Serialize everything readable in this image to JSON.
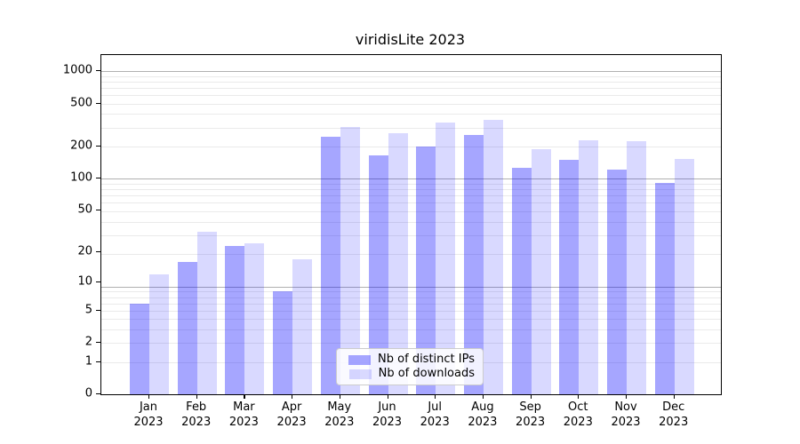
{
  "title": "viridisLite 2023",
  "colors": {
    "ips_bar": "rgba(0,0,255,0.35)",
    "downloads_bar": "rgba(0,0,255,0.15)",
    "major_grid": "#b0b0b0",
    "minor_grid": "#eaeaea",
    "axis": "#000000"
  },
  "legend": {
    "position": "lower center"
  },
  "chart_data": {
    "type": "bar",
    "title": "viridisLite 2023",
    "categories": [
      "Jan 2023",
      "Feb 2023",
      "Mar 2023",
      "Apr 2023",
      "May 2023",
      "Jun 2023",
      "Jul 2023",
      "Aug 2023",
      "Sep 2023",
      "Oct 2023",
      "Nov 2023",
      "Dec 2023"
    ],
    "x_tick_line1": [
      "Jan",
      "Feb",
      "Mar",
      "Apr",
      "May",
      "Jun",
      "Jul",
      "Aug",
      "Sep",
      "Oct",
      "Nov",
      "Dec"
    ],
    "x_tick_line2": [
      "2023",
      "2023",
      "2023",
      "2023",
      "2023",
      "2023",
      "2023",
      "2023",
      "2023",
      "2023",
      "2023",
      "2023"
    ],
    "series": [
      {
        "name": "Nb of distinct IPs",
        "values": [
          6,
          16,
          23,
          8,
          245,
          164,
          198,
          255,
          125,
          149,
          121,
          91
        ]
      },
      {
        "name": "Nb of downloads",
        "values": [
          12,
          31,
          24,
          17,
          303,
          264,
          334,
          350,
          187,
          226,
          223,
          152
        ]
      }
    ],
    "y_axis": {
      "scale": "log(value+1)",
      "tick_values": [
        0,
        1,
        2,
        5,
        10,
        20,
        50,
        100,
        200,
        500,
        1000
      ],
      "tick_labels": [
        "0",
        "1",
        "2",
        "5",
        "10",
        "20",
        "50",
        "100",
        "200",
        "500",
        "1000"
      ]
    },
    "grid": true,
    "legend_position": "lower center"
  }
}
